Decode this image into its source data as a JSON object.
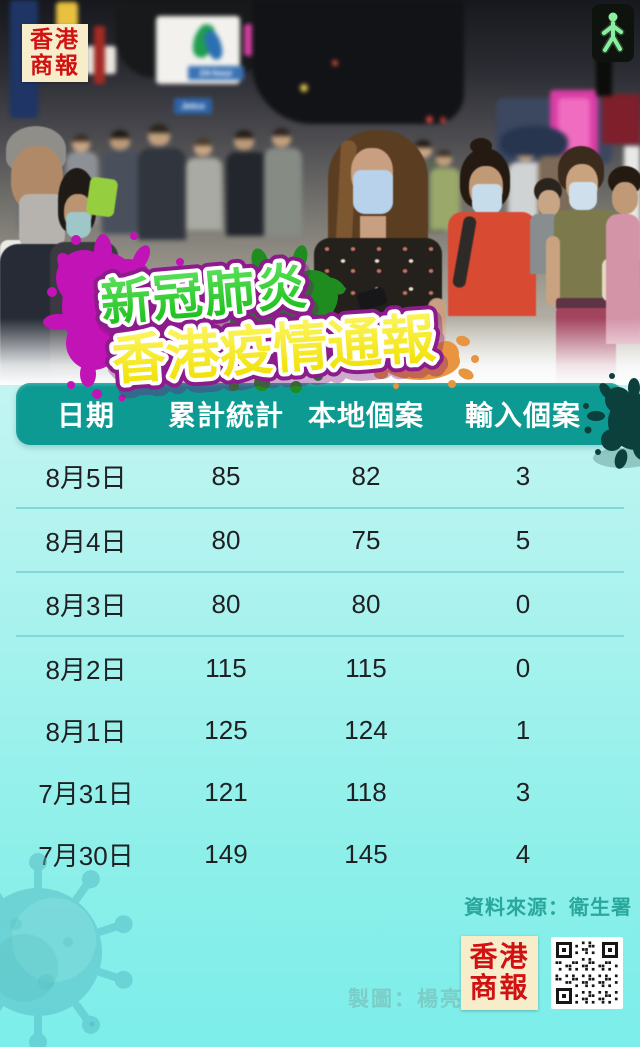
{
  "masthead": {
    "logo_line1": "香港",
    "logo_line2": "商報"
  },
  "photo": {
    "sign_24hour": "24-hour",
    "sign_jetco": "Jetco",
    "sign_g4s": "G4S"
  },
  "title": {
    "line1": "新冠肺炎",
    "line2": "香港疫情通報"
  },
  "table": {
    "headers": [
      "日期",
      "累計統計",
      "本地個案",
      "輸入個案"
    ],
    "rows": [
      {
        "date": "8月5日",
        "cumulative": "85",
        "local": "82",
        "imported": "3"
      },
      {
        "date": "8月4日",
        "cumulative": "80",
        "local": "75",
        "imported": "5"
      },
      {
        "date": "8月3日",
        "cumulative": "80",
        "local": "80",
        "imported": "0"
      },
      {
        "date": "8月2日",
        "cumulative": "115",
        "local": "115",
        "imported": "0"
      },
      {
        "date": "8月1日",
        "cumulative": "125",
        "local": "124",
        "imported": "1"
      },
      {
        "date": "7月31日",
        "cumulative": "121",
        "local": "118",
        "imported": "3"
      },
      {
        "date": "7月30日",
        "cumulative": "149",
        "local": "145",
        "imported": "4"
      }
    ]
  },
  "footer": {
    "source": "資料來源：衛生署",
    "credit": "製圖：楊亮",
    "logo_line1": "香港",
    "logo_line2": "商報"
  },
  "colors": {
    "header_teal": "#0d9a93",
    "divider_teal": "#7fd9d5",
    "splat_magenta": "#c213b7",
    "splat_green": "#1f8c1f",
    "splat_orange": "#e9953f",
    "splat_dark_virus": "#0b403d",
    "title_green": "#2fcf2f",
    "title_yellow": "#f8ef16",
    "title_outline_purple": "#8c1b8c",
    "source_text": "#2aa79b",
    "credit_text": "#7bcdc7",
    "logo_red": "#d01212",
    "logo_cream": "#f8edca",
    "background_cyan": "#7ceeea"
  }
}
